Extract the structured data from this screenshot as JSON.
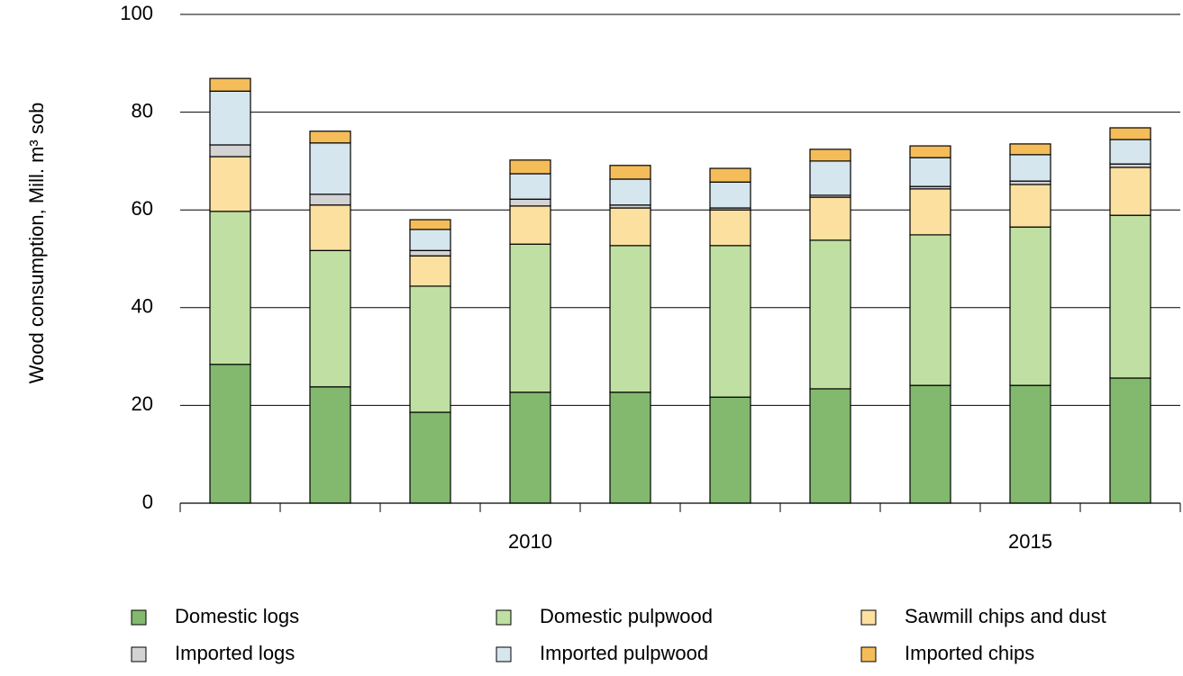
{
  "chart_data": {
    "type": "stacked-bar",
    "y_label": "Wood consumption, Mill. m³ sob",
    "categories": [
      null,
      null,
      null,
      "2010",
      null,
      null,
      null,
      null,
      "2015",
      null
    ],
    "ylim": [
      0,
      100
    ],
    "yticks": [
      0,
      20,
      40,
      60,
      80,
      100
    ],
    "grid": true,
    "series": [
      {
        "name": "Domestic logs",
        "color": "#82b96e",
        "values": [
          28.4,
          23.8,
          18.6,
          22.7,
          22.7,
          21.7,
          23.4,
          24.1,
          24.1,
          25.6
        ]
      },
      {
        "name": "Domestic pulpwood",
        "color": "#bfe0a2",
        "values": [
          31.3,
          27.9,
          25.8,
          30.3,
          30.0,
          31.0,
          30.4,
          30.8,
          32.4,
          33.3
        ]
      },
      {
        "name": "Sawmill chips and dust",
        "color": "#fce0a0",
        "values": [
          11.2,
          9.3,
          6.2,
          7.8,
          7.7,
          7.3,
          8.8,
          9.4,
          8.7,
          9.8
        ]
      },
      {
        "name": "Imported logs",
        "color": "#d3d3d3",
        "values": [
          2.4,
          2.2,
          1.1,
          1.4,
          0.6,
          0.4,
          0.4,
          0.5,
          0.7,
          0.7
        ]
      },
      {
        "name": "Imported pulpwood",
        "color": "#d5e6ef",
        "values": [
          11.0,
          10.5,
          4.3,
          5.2,
          5.3,
          5.3,
          7.0,
          5.9,
          5.4,
          5.0
        ]
      },
      {
        "name": "Imported chips",
        "color": "#f5bd59",
        "values": [
          2.6,
          2.4,
          2.0,
          2.8,
          2.8,
          2.8,
          2.4,
          2.4,
          2.2,
          2.4
        ]
      }
    ]
  }
}
